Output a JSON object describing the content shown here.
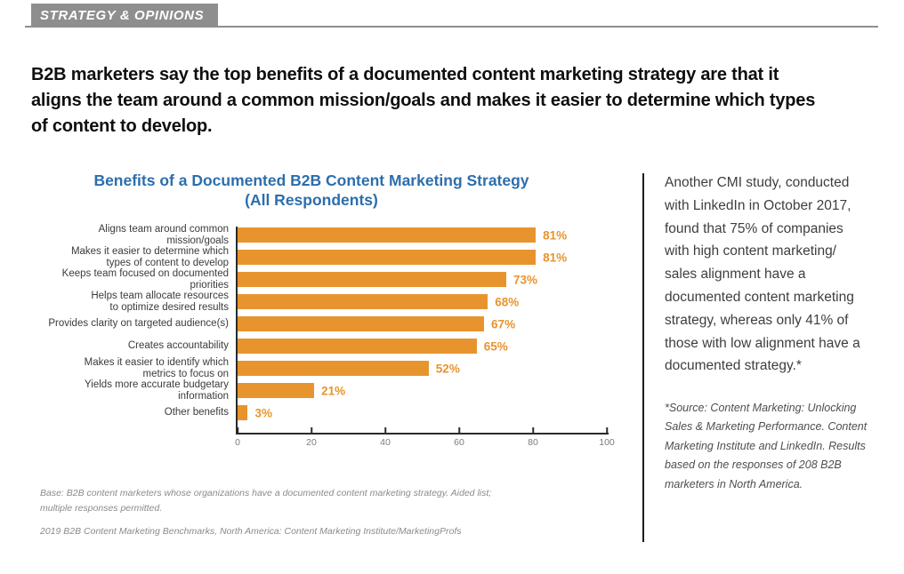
{
  "page": {
    "kicker": "STRATEGY & OPINIONS",
    "headline": "B2B marketers say the top benefits of a documented content marketing strategy are that it\naligns the team around a common mission/goals and makes it easier to determine which types\nof content to develop."
  },
  "chart": {
    "title_line1": "Benefits of a Documented B2B Content Marketing Strategy",
    "title_line2": "(All Respondents)",
    "base_note": "Base: B2B content marketers whose organizations have a documented content marketing strategy. Aided list;\nmultiple responses permitted.",
    "source_note": "2019 B2B Content Marketing Benchmarks, North America: Content Marketing Institute/MarketingProfs"
  },
  "chart_data": {
    "type": "bar",
    "orientation": "horizontal",
    "title": "Benefits of a Documented B2B Content Marketing Strategy (All Respondents)",
    "categories": [
      "Aligns team around common mission/goals",
      "Makes it easier to determine which\ntypes of content to develop",
      "Keeps team focused on documented priorities",
      "Helps team allocate resources\nto optimize desired results",
      "Provides clarity on targeted audience(s)",
      "Creates accountability",
      "Makes it easier to identify which\nmetrics to focus on",
      "Yields more accurate budgetary information",
      "Other benefits"
    ],
    "values": [
      81,
      81,
      73,
      68,
      67,
      65,
      52,
      21,
      3
    ],
    "value_suffix": "%",
    "xlim": [
      0,
      100
    ],
    "x_ticks": [
      0,
      20,
      40,
      60,
      80,
      100
    ],
    "grid": false,
    "legend": false
  },
  "sidebar": {
    "paragraph": "Another CMI study, conducted\nwith LinkedIn in October 2017,\nfound that 75% of companies\nwith high content marketing/\nsales alignment have a\ndocumented content marketing\nstrategy, whereas only 41% of\nthose with low alignment have a\ndocumented strategy.*",
    "footnote": "*Source: Content Marketing: Unlocking\nSales & Marketing Performance. Content\nMarketing Institute and LinkedIn. Results\nbased on the responses of 208 B2B\nmarketers in North America."
  },
  "colors": {
    "bar_orange": "#E8942E",
    "title_blue": "#2C6EAD",
    "kicker_gray": "#8E8E8E"
  }
}
